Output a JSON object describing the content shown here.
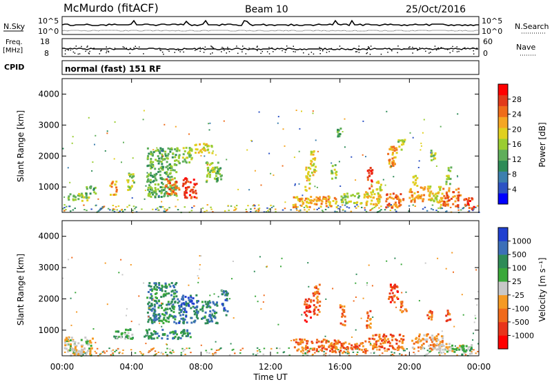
{
  "header": {
    "station": "McMurdo (fitACF)",
    "beam": "Beam 10",
    "date": "25/Oct/2016"
  },
  "small_panels": {
    "nsky_label": "N.Sky",
    "nsky_ticks": [
      "10^5",
      "10^0"
    ],
    "nsearch_label": "N.Search",
    "nsearch_ticks": [
      "10^5",
      "10^0"
    ],
    "freq_label": "Freq.",
    "freq_unit": "[MHz]",
    "freq_ticks": [
      "18",
      "8"
    ],
    "nave_label": "Nave",
    "nave_ticks": [
      "60",
      "0"
    ],
    "cpid_label": "CPID",
    "cpid_text": "normal (fast) 151 RF"
  },
  "power_colorbar": {
    "label": "Power [dB]",
    "ticks": [
      "28",
      "24",
      "20",
      "16",
      "12",
      "8",
      "4"
    ],
    "colors": [
      "#0000ff",
      "#2c52c4",
      "#3c7fae",
      "#2e8b57",
      "#5fae5a",
      "#9acd32",
      "#e0d020",
      "#f5a623",
      "#ef6c1a",
      "#e23a1a",
      "#ff0000"
    ]
  },
  "velocity_colorbar": {
    "label": "Velocity [m s⁻¹]",
    "ticks": [
      "1000",
      "500",
      "100",
      "25",
      "-25",
      "-100",
      "-500",
      "-1000"
    ],
    "colors": [
      "#ff0000",
      "#e8341a",
      "#f06a1a",
      "#f59a23",
      "#c8c8c8",
      "#3aa83a",
      "#2e8b57",
      "#3c6fb8",
      "#2040d0"
    ]
  },
  "chart_data": {
    "type": "heatmap",
    "xlabel": "Time UT",
    "ylabel": "Slant Range [km]",
    "x_ticks": [
      "00:00",
      "04:00",
      "08:00",
      "12:00",
      "16:00",
      "20:00",
      "00:00"
    ],
    "y_ticks": [
      "1000",
      "2000",
      "3000",
      "4000"
    ],
    "xlim": [
      0,
      24
    ],
    "ylim": [
      180,
      4500
    ],
    "power_patches": [
      {
        "t": 0.9,
        "r": 700,
        "w": 1.2,
        "h": 260,
        "c": 5
      },
      {
        "t": 1.6,
        "r": 900,
        "w": 0.6,
        "h": 300,
        "c": 4
      },
      {
        "t": 2.9,
        "r": 1000,
        "w": 0.4,
        "h": 450,
        "c": 7
      },
      {
        "t": 3.9,
        "r": 1200,
        "w": 0.4,
        "h": 600,
        "c": 5
      },
      {
        "t": 5.7,
        "r": 1500,
        "w": 1.7,
        "h": 1600,
        "c": 4
      },
      {
        "t": 6.3,
        "r": 1050,
        "w": 0.8,
        "h": 500,
        "c": 8
      },
      {
        "t": 7.3,
        "r": 1000,
        "w": 0.8,
        "h": 650,
        "c": 9
      },
      {
        "t": 7.0,
        "r": 2050,
        "w": 0.9,
        "h": 500,
        "c": 5
      },
      {
        "t": 8.1,
        "r": 2250,
        "w": 1.0,
        "h": 350,
        "c": 6
      },
      {
        "t": 8.6,
        "r": 1500,
        "w": 0.7,
        "h": 700,
        "c": 5
      },
      {
        "t": 9.0,
        "r": 1400,
        "w": 0.3,
        "h": 500,
        "c": 4
      },
      {
        "t": 14.1,
        "r": 1300,
        "w": 0.3,
        "h": 800,
        "c": 6
      },
      {
        "t": 14.4,
        "r": 1800,
        "w": 0.3,
        "h": 900,
        "c": 6
      },
      {
        "t": 15.6,
        "r": 1550,
        "w": 0.3,
        "h": 500,
        "c": 5
      },
      {
        "t": 15.9,
        "r": 2800,
        "w": 0.2,
        "h": 300,
        "c": 4
      },
      {
        "t": 17.7,
        "r": 1300,
        "w": 0.3,
        "h": 700,
        "c": 9
      },
      {
        "t": 18.2,
        "r": 1100,
        "w": 0.3,
        "h": 400,
        "c": 6
      },
      {
        "t": 19.0,
        "r": 2000,
        "w": 0.6,
        "h": 700,
        "c": 7
      },
      {
        "t": 19.5,
        "r": 2400,
        "w": 0.4,
        "h": 400,
        "c": 5
      },
      {
        "t": 20.3,
        "r": 1250,
        "w": 0.3,
        "h": 400,
        "c": 6
      },
      {
        "t": 21.3,
        "r": 2050,
        "w": 0.3,
        "h": 400,
        "c": 5
      },
      {
        "t": 22.2,
        "r": 1400,
        "w": 0.3,
        "h": 600,
        "c": 5
      },
      {
        "t": 14.5,
        "r": 550,
        "w": 2.6,
        "h": 350,
        "c": 7
      },
      {
        "t": 16.6,
        "r": 650,
        "w": 1.2,
        "h": 350,
        "c": 5
      },
      {
        "t": 17.8,
        "r": 700,
        "w": 1.0,
        "h": 500,
        "c": 6
      },
      {
        "t": 19.1,
        "r": 600,
        "w": 1.0,
        "h": 500,
        "c": 8
      },
      {
        "t": 20.4,
        "r": 800,
        "w": 0.9,
        "h": 500,
        "c": 7
      },
      {
        "t": 21.4,
        "r": 750,
        "w": 0.9,
        "h": 600,
        "c": 6
      },
      {
        "t": 22.4,
        "r": 700,
        "w": 1.0,
        "h": 600,
        "c": 8
      },
      {
        "t": 23.4,
        "r": 500,
        "w": 0.6,
        "h": 400,
        "c": 9
      }
    ],
    "velocity_patches": [
      {
        "t": 0.9,
        "r": 550,
        "w": 1.7,
        "h": 500,
        "c": 4
      },
      {
        "t": 1.0,
        "r": 300,
        "w": 1.4,
        "h": 180,
        "c": 4
      },
      {
        "t": 3.5,
        "r": 900,
        "w": 1.2,
        "h": 350,
        "c": 5
      },
      {
        "t": 5.7,
        "r": 1900,
        "w": 1.7,
        "h": 1300,
        "c": 6
      },
      {
        "t": 6.0,
        "r": 900,
        "w": 2.8,
        "h": 300,
        "c": 6
      },
      {
        "t": 7.2,
        "r": 1700,
        "w": 1.2,
        "h": 900,
        "c": 7
      },
      {
        "t": 8.4,
        "r": 1600,
        "w": 1.0,
        "h": 700,
        "c": 6
      },
      {
        "t": 9.3,
        "r": 1900,
        "w": 0.4,
        "h": 800,
        "c": 7
      },
      {
        "t": 14.1,
        "r": 1700,
        "w": 0.4,
        "h": 800,
        "c": 1
      },
      {
        "t": 14.6,
        "r": 2000,
        "w": 0.4,
        "h": 1000,
        "c": 2
      },
      {
        "t": 16.1,
        "r": 1500,
        "w": 0.3,
        "h": 700,
        "c": 2
      },
      {
        "t": 17.6,
        "r": 1400,
        "w": 0.3,
        "h": 600,
        "c": 2
      },
      {
        "t": 19.0,
        "r": 2200,
        "w": 0.6,
        "h": 600,
        "c": 1
      },
      {
        "t": 19.6,
        "r": 1800,
        "w": 0.4,
        "h": 400,
        "c": 2
      },
      {
        "t": 21.1,
        "r": 1500,
        "w": 0.3,
        "h": 300,
        "c": 2
      },
      {
        "t": 22.2,
        "r": 1500,
        "w": 0.3,
        "h": 400,
        "c": 2
      },
      {
        "t": 14.5,
        "r": 550,
        "w": 2.5,
        "h": 400,
        "c": 2
      },
      {
        "t": 16.5,
        "r": 500,
        "w": 2.0,
        "h": 400,
        "c": 2
      },
      {
        "t": 18.6,
        "r": 650,
        "w": 2.0,
        "h": 500,
        "c": 2
      },
      {
        "t": 21.0,
        "r": 650,
        "w": 1.8,
        "h": 500,
        "c": 3
      },
      {
        "t": 22.3,
        "r": 450,
        "w": 1.6,
        "h": 300,
        "c": 4
      },
      {
        "t": 23.2,
        "r": 400,
        "w": 0.8,
        "h": 350,
        "c": 5
      }
    ]
  }
}
